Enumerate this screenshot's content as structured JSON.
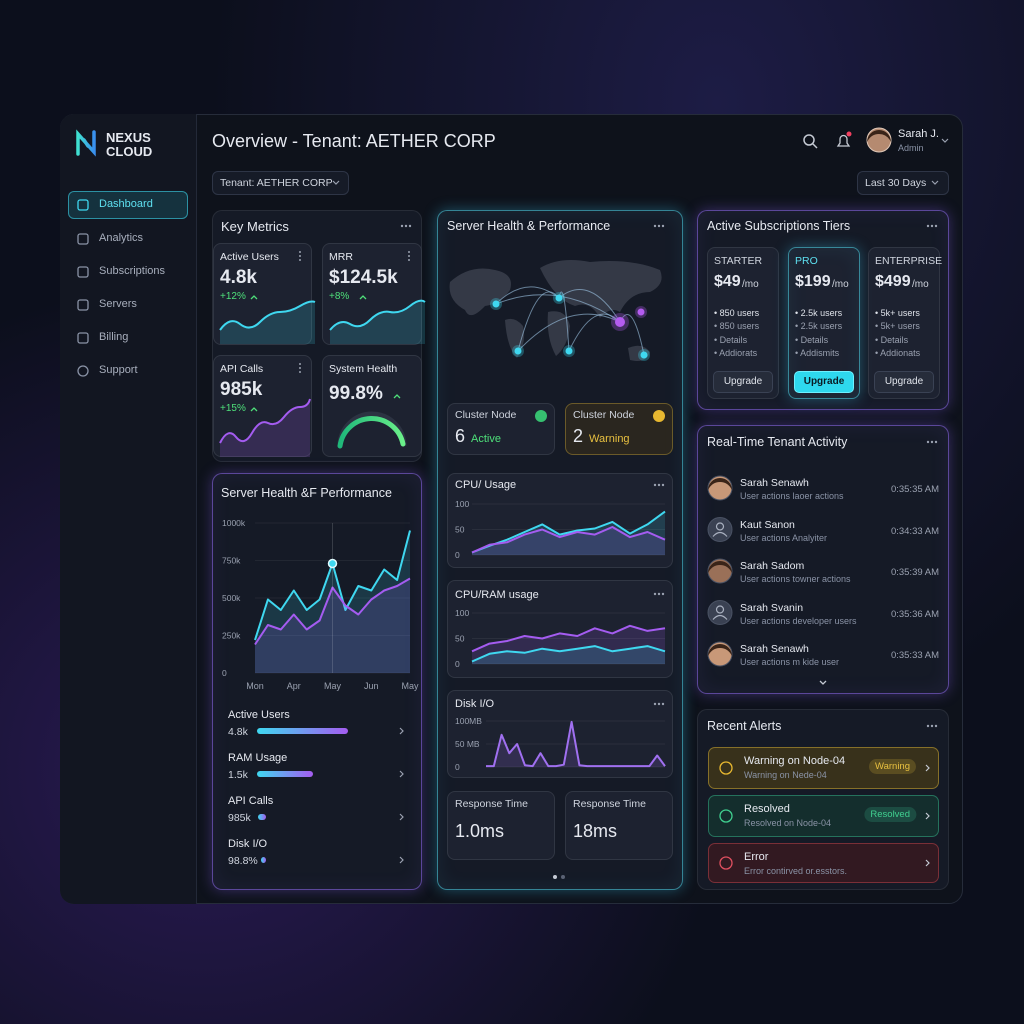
{
  "sidebar": {
    "brand_line1": "NEXUS",
    "brand_line2": "CLOUD",
    "nav": [
      "Dashboard",
      "Analytics",
      "Subscriptions",
      "Servers",
      "Billing",
      "Support"
    ]
  },
  "header": {
    "title": "Overview - Tenant: AETHER CORP",
    "user_name": "Sarah J.",
    "user_role": "Admin",
    "tenant_filter": "Tenant: AETHER CORP",
    "date_filter": "Last 30 Days"
  },
  "key_metrics": {
    "title": "Key Metrics",
    "cards": [
      {
        "label": "Active Users",
        "value": "4.8k",
        "change": "+12%"
      },
      {
        "label": "MRR",
        "value": "$124.5k",
        "change": "+8%"
      },
      {
        "label": "API Calls",
        "value": "985k",
        "change": "+15%"
      },
      {
        "label": "System Health",
        "value": "99.8%"
      }
    ]
  },
  "server_health": {
    "title": "Server Health &F Performance",
    "chart": {
      "type": "line",
      "categories": [
        "Mon",
        null,
        null,
        "Apr",
        null,
        null,
        "May",
        null,
        null,
        "Jun",
        null,
        null,
        "May"
      ],
      "ylim": [
        0,
        1000000
      ],
      "yticks": [
        0,
        {
          "value": 250000,
          "label": "250k"
        },
        {
          "value": 500000,
          "label": "500k"
        },
        {
          "value": 750000,
          "label": "750k"
        },
        {
          "value": 1000000,
          "label": "1000k"
        }
      ],
      "series": [
        {
          "color": "#3fd8f0",
          "values": [
            220000,
            490000,
            420000,
            550000,
            420000,
            490000,
            730000,
            420000,
            580000,
            550000,
            690000,
            620000,
            950000
          ]
        },
        {
          "color": "#a45cf0",
          "values": [
            190000,
            320000,
            290000,
            390000,
            290000,
            350000,
            570000,
            450000,
            390000,
            490000,
            550000,
            580000,
            630000
          ]
        }
      ]
    },
    "metrics": [
      {
        "label": "Active Users",
        "value": "4.8k"
      },
      {
        "label": "RAM Usage",
        "value": "1.5k"
      },
      {
        "label": "API Calls",
        "value": "985k"
      },
      {
        "label": "Disk I/O",
        "value": "98.8%"
      }
    ]
  },
  "infrastructure": {
    "title": "Server Health & Performance",
    "clusters": [
      {
        "label": "Cluster Node",
        "count": 6,
        "status": "Active"
      },
      {
        "label": "Cluster Node",
        "count": 2,
        "status": "Warning"
      }
    ],
    "cpu_usage": {
      "type": "line",
      "title": "CPU/ Usage",
      "ylim": [
        0,
        100
      ],
      "yticks": [
        0,
        50,
        100
      ],
      "series": [
        {
          "color": "#3fd8f0",
          "values": [
            5,
            18,
            30,
            45,
            60,
            40,
            48,
            52,
            65,
            42,
            60,
            85
          ]
        },
        {
          "color": "#a45cf0",
          "values": [
            5,
            20,
            25,
            40,
            50,
            35,
            45,
            40,
            55,
            35,
            45,
            30
          ]
        }
      ]
    },
    "cpu_ram_usage": {
      "type": "line",
      "title": "CPU/RAM usage",
      "ylim": [
        0,
        100
      ],
      "yticks": [
        0,
        50,
        100
      ],
      "series": [
        {
          "color": "#a45cf0",
          "values": [
            25,
            40,
            45,
            55,
            50,
            60,
            55,
            70,
            60,
            75,
            65,
            70
          ]
        },
        {
          "color": "#3fd8f0",
          "values": [
            5,
            20,
            25,
            22,
            30,
            25,
            30,
            35,
            25,
            30,
            35,
            25
          ]
        }
      ]
    },
    "disk_io": {
      "type": "line",
      "title": "Disk I/O",
      "ylim": [
        0,
        100
      ],
      "yticks": [
        0,
        {
          "value": 50,
          "label": "50 MB"
        },
        {
          "value": 100,
          "label": "100MB"
        }
      ],
      "series": [
        {
          "color": "#a070f0",
          "values": [
            2,
            2,
            70,
            30,
            50,
            4,
            2,
            30,
            2,
            2,
            5,
            98,
            4,
            2,
            2,
            2,
            2,
            2,
            2,
            2,
            2,
            2,
            25,
            2
          ]
        }
      ]
    },
    "response_times": [
      {
        "label": "Response Time",
        "value": "1.0ms"
      },
      {
        "label": "Response Time",
        "value": "18ms"
      }
    ]
  },
  "subscriptions": {
    "title": "Active Subscriptions Tiers",
    "tiers": [
      {
        "name": "STARTER",
        "price": "$49",
        "period": "/mo",
        "features": [
          "850 users",
          "850 users",
          "Details",
          "Addiorats"
        ],
        "button": "Upgrade"
      },
      {
        "name": "PRO",
        "price": "$199",
        "period": "/mo",
        "features": [
          "2.5k users",
          "2.5k users",
          "Details",
          "Addismits"
        ],
        "button": "Upgrade"
      },
      {
        "name": "ENTERPRISE",
        "price": "$499",
        "period": "/mo",
        "features": [
          "5k+ users",
          "5k+ users",
          "Details",
          "Addionats"
        ],
        "button": "Upgrade"
      }
    ]
  },
  "activity": {
    "title": "Real-Time Tenant Activity",
    "events": [
      {
        "name": "Sarah Senawh",
        "detail": "User actions laoer actions",
        "time": "0:35:35 AM"
      },
      {
        "name": "Kaut Sanon",
        "detail": "User actions Analyiter",
        "time": "0:34:33 AM"
      },
      {
        "name": "Sarah Sadom",
        "detail": "User actions towner actions",
        "time": "0:35:39 AM"
      },
      {
        "name": "Sarah Svanin",
        "detail": "User actions developer users",
        "time": "0:35:36 AM"
      },
      {
        "name": "Sarah Senawh",
        "detail": "User actions m kide user",
        "time": "0:35:33 AM"
      }
    ]
  },
  "alerts": {
    "title": "Recent Alerts",
    "items": [
      {
        "title": "Warning on Node-04",
        "detail": "Warning on Nede-04",
        "badge": "Warning"
      },
      {
        "title": "Resolved",
        "detail": "Resolved on Node-04",
        "badge": "Resolved"
      },
      {
        "title": "Error",
        "detail": "Error contirved or.esstors."
      }
    ]
  }
}
